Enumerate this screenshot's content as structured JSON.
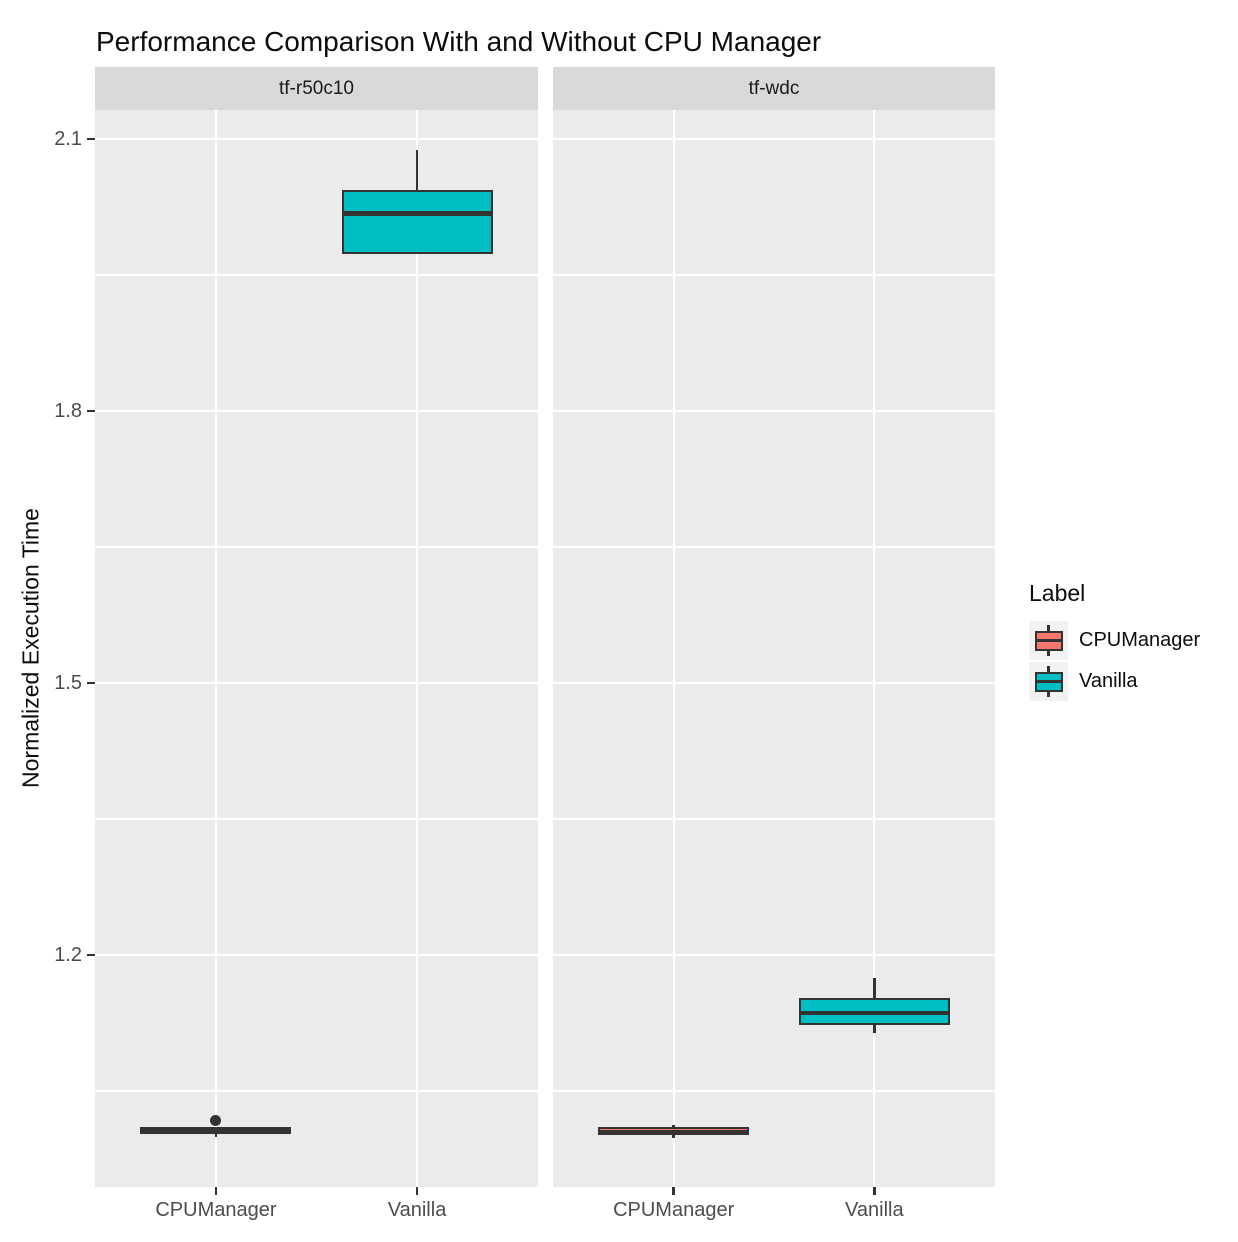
{
  "chart_data": {
    "type": "boxplot",
    "title": "Performance Comparison With and Without CPU Manager",
    "ylabel": "Normalized Execution Time",
    "xlabel": "",
    "yticks": [
      1.2,
      1.5,
      1.8,
      2.1
    ],
    "yticks_minor": [
      1.05,
      1.35,
      1.65,
      1.95
    ],
    "ylim_panel": [
      0.944,
      2.132
    ],
    "grid": "on",
    "legend_position": "right",
    "categories": [
      "CPUManager",
      "Vanilla"
    ],
    "facets": [
      {
        "label": "tf-r50c10",
        "boxes": [
          {
            "category": "CPUManager",
            "color_key": "CPUManager",
            "whisker_low": 0.999,
            "q1": 1.002,
            "median": 1.006,
            "q3": 1.01,
            "whisker_high": 1.01,
            "outliers": [
              1.017
            ]
          },
          {
            "category": "Vanilla",
            "color_key": "Vanilla",
            "whisker_low": 1.973,
            "q1": 1.973,
            "median": 2.018,
            "q3": 2.044,
            "whisker_high": 2.088,
            "outliers": []
          }
        ]
      },
      {
        "label": "tf-wdc",
        "boxes": [
          {
            "category": "CPUManager",
            "color_key": "CPUManager",
            "whisker_low": 0.998,
            "q1": 1.001,
            "median": 1.004,
            "q3": 1.01,
            "whisker_high": 1.012,
            "outliers": []
          },
          {
            "category": "Vanilla",
            "color_key": "Vanilla",
            "whisker_low": 1.114,
            "q1": 1.123,
            "median": 1.136,
            "q3": 1.152,
            "whisker_high": 1.174,
            "outliers": []
          }
        ]
      }
    ],
    "legend": {
      "title": "Label",
      "entries": [
        {
          "label": "CPUManager",
          "color": "#F8766D"
        },
        {
          "label": "Vanilla",
          "color": "#00BFC4"
        }
      ]
    },
    "colors": {
      "CPUManager": "#F8766D",
      "Vanilla": "#00BFC4",
      "box_border": "#333333",
      "panel_bg": "#EBEBEB",
      "strip_bg": "#D9D9D9",
      "gridline": "#FFFFFF",
      "tick_text": "#4D4D4D",
      "legend_key_bg": "#F2F2F2"
    }
  }
}
